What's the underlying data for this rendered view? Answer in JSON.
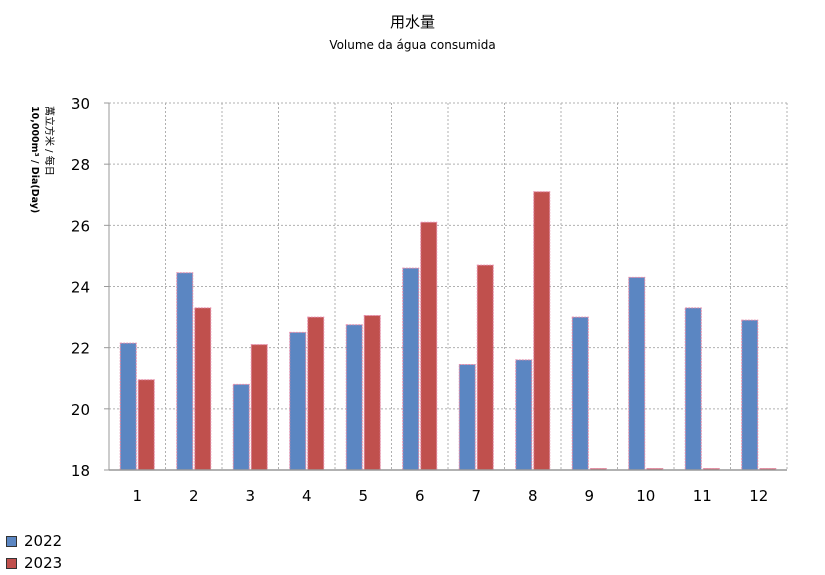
{
  "chart_data": {
    "type": "bar",
    "title": "用水量",
    "subtitle": "Volume da água consumida",
    "ylabel_line1": "萬立方米 / 每日",
    "ylabel_line2": "10,000m³ / Dia(Day)",
    "xlabel": "",
    "categories": [
      "1",
      "2",
      "3",
      "4",
      "5",
      "6",
      "7",
      "8",
      "9",
      "10",
      "11",
      "12"
    ],
    "ylim": [
      18,
      30
    ],
    "yticks": [
      18,
      20,
      22,
      24,
      26,
      28,
      30
    ],
    "grid": true,
    "legend_position": "bottom-left",
    "series": [
      {
        "name": "2022",
        "color": "#5b86c2",
        "values": [
          22.15,
          24.45,
          20.8,
          22.5,
          22.75,
          24.6,
          21.45,
          21.6,
          23.0,
          24.3,
          23.3,
          22.9
        ]
      },
      {
        "name": "2023",
        "color": "#c0504d",
        "values": [
          20.95,
          23.3,
          22.1,
          23.0,
          23.05,
          26.1,
          24.7,
          27.1,
          18.05,
          18.05,
          18.05,
          18.05
        ]
      }
    ]
  }
}
